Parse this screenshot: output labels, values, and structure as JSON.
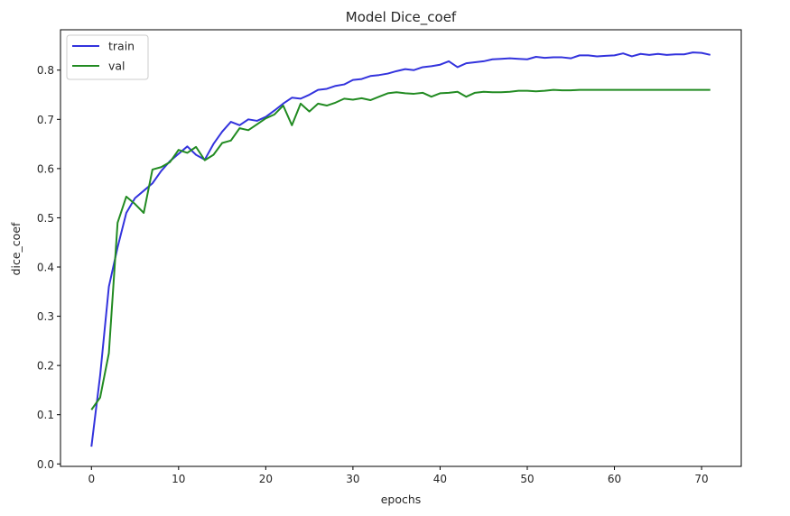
{
  "chart_data": {
    "type": "line",
    "title": "Model Dice_coef",
    "xlabel": "epochs",
    "ylabel": "dice_coef",
    "xlim": [
      -3.55,
      74.55
    ],
    "ylim": [
      -0.005,
      0.882
    ],
    "xticks": [
      0,
      10,
      20,
      30,
      40,
      50,
      60,
      70
    ],
    "yticks": [
      0.0,
      0.1,
      0.2,
      0.3,
      0.4,
      0.5,
      0.6,
      0.7,
      0.8
    ],
    "ytick_labels": [
      "0.0",
      "0.1",
      "0.2",
      "0.3",
      "0.4",
      "0.5",
      "0.6",
      "0.7",
      "0.8"
    ],
    "grid": false,
    "legend_position": "top-left",
    "series": [
      {
        "name": "train",
        "color": "#3333dd",
        "x": [
          0,
          1,
          2,
          3,
          4,
          5,
          6,
          7,
          8,
          9,
          10,
          11,
          12,
          13,
          14,
          15,
          16,
          17,
          18,
          19,
          20,
          21,
          22,
          23,
          24,
          25,
          26,
          27,
          28,
          29,
          30,
          31,
          32,
          33,
          34,
          35,
          36,
          37,
          38,
          39,
          40,
          41,
          42,
          43,
          44,
          45,
          46,
          47,
          48,
          49,
          50,
          51,
          52,
          53,
          54,
          55,
          56,
          57,
          58,
          59,
          60,
          61,
          62,
          63,
          64,
          65,
          66,
          67,
          68,
          69,
          70,
          71
        ],
        "values": [
          0.035,
          0.18,
          0.36,
          0.44,
          0.51,
          0.54,
          0.555,
          0.57,
          0.595,
          0.615,
          0.63,
          0.645,
          0.628,
          0.618,
          0.65,
          0.675,
          0.695,
          0.688,
          0.7,
          0.697,
          0.705,
          0.718,
          0.732,
          0.744,
          0.742,
          0.75,
          0.76,
          0.762,
          0.768,
          0.771,
          0.78,
          0.782,
          0.788,
          0.79,
          0.793,
          0.798,
          0.802,
          0.8,
          0.806,
          0.808,
          0.811,
          0.818,
          0.806,
          0.814,
          0.816,
          0.818,
          0.822,
          0.823,
          0.824,
          0.823,
          0.822,
          0.827,
          0.825,
          0.826,
          0.826,
          0.824,
          0.83,
          0.83,
          0.828,
          0.829,
          0.83,
          0.834,
          0.828,
          0.833,
          0.831,
          0.833,
          0.831,
          0.832,
          0.832,
          0.836,
          0.835,
          0.831
        ]
      },
      {
        "name": "val",
        "color": "#228b22",
        "x": [
          0,
          1,
          2,
          3,
          4,
          5,
          6,
          7,
          8,
          9,
          10,
          11,
          12,
          13,
          14,
          15,
          16,
          17,
          18,
          19,
          20,
          21,
          22,
          23,
          24,
          25,
          26,
          27,
          28,
          29,
          30,
          31,
          32,
          33,
          34,
          35,
          36,
          37,
          38,
          39,
          40,
          41,
          42,
          43,
          44,
          45,
          46,
          47,
          48,
          49,
          50,
          51,
          52,
          53,
          54,
          55,
          56,
          57,
          58,
          59,
          60,
          61,
          62,
          63,
          64,
          65,
          66,
          67,
          68,
          69,
          70,
          71
        ],
        "values": [
          0.11,
          0.135,
          0.225,
          0.49,
          0.543,
          0.528,
          0.51,
          0.598,
          0.603,
          0.613,
          0.638,
          0.632,
          0.644,
          0.617,
          0.628,
          0.652,
          0.657,
          0.682,
          0.678,
          0.69,
          0.702,
          0.71,
          0.728,
          0.688,
          0.732,
          0.716,
          0.732,
          0.728,
          0.734,
          0.742,
          0.74,
          0.743,
          0.739,
          0.746,
          0.753,
          0.755,
          0.753,
          0.752,
          0.754,
          0.746,
          0.753,
          0.754,
          0.756,
          0.746,
          0.754,
          0.756,
          0.755,
          0.755,
          0.756,
          0.758,
          0.758,
          0.757,
          0.758,
          0.76,
          0.759,
          0.759,
          0.76,
          0.76,
          0.76,
          0.76,
          0.76,
          0.76,
          0.76,
          0.76,
          0.76,
          0.76,
          0.76,
          0.76,
          0.76,
          0.76,
          0.76,
          0.76
        ]
      }
    ]
  }
}
